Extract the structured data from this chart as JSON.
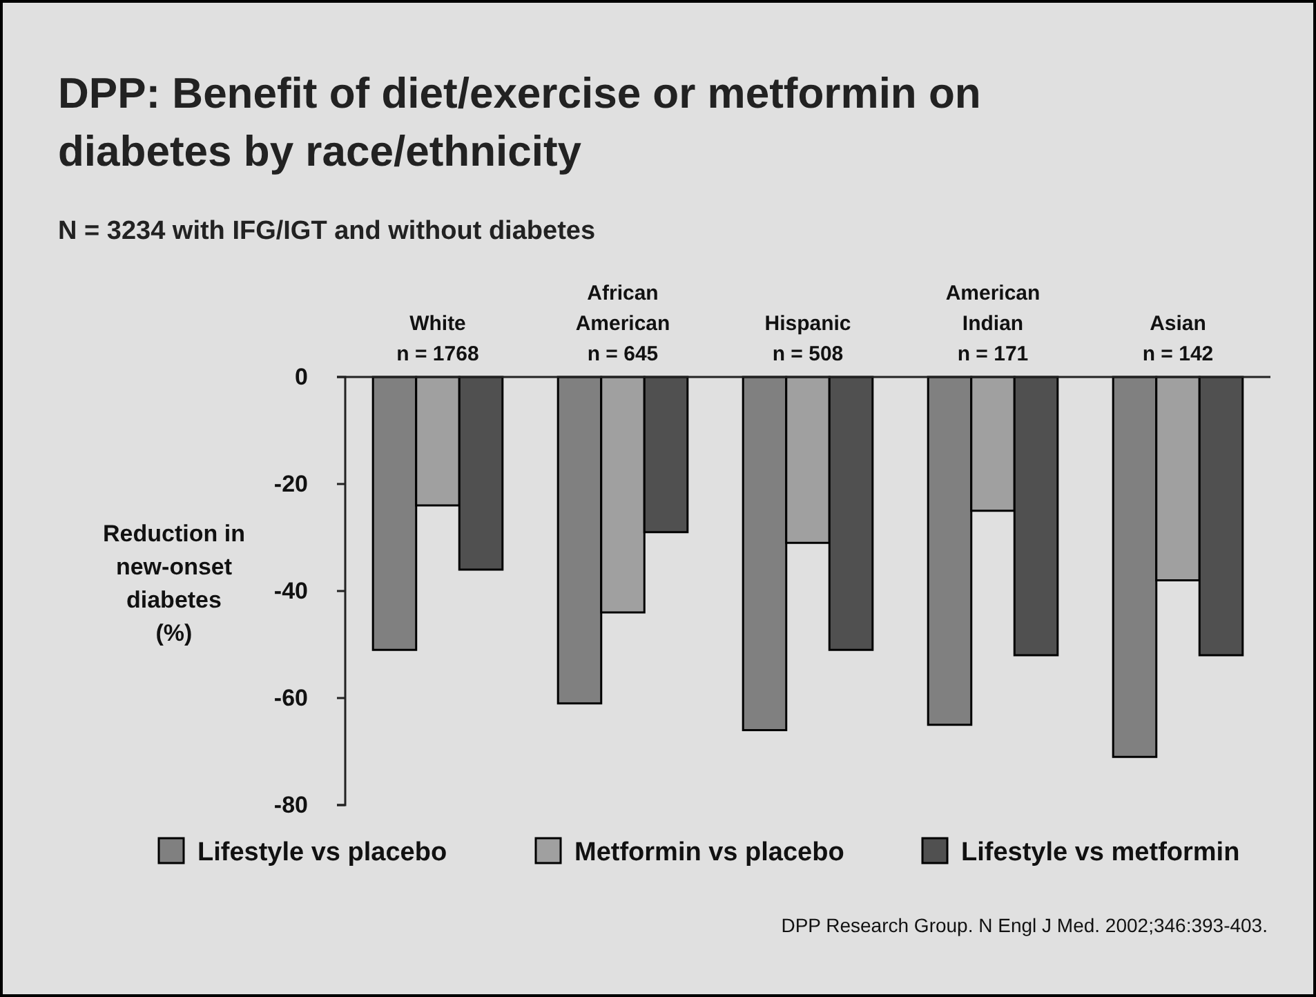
{
  "chart_data": {
    "type": "bar",
    "title": "DPP: Benefit of diet/exercise or metformin on diabetes by race/ethnicity",
    "subtitle": "N = 3234 with IFG/IGT and without diabetes",
    "ylabel": "Reduction in\nnew-onset\ndiabetes\n(%)",
    "categories": [
      "White\nn = 1768",
      "African\nAmerican\nn = 645",
      "Hispanic\nn = 508",
      "American\nIndian\nn = 171",
      "Asian\nn = 142"
    ],
    "series": [
      {
        "name": "Lifestyle vs placebo",
        "color": "#808080",
        "values": [
          -51,
          -61,
          -66,
          -65,
          -71
        ]
      },
      {
        "name": "Metformin vs placebo",
        "color": "#a0a0a0",
        "values": [
          -24,
          -44,
          -31,
          -25,
          -38
        ]
      },
      {
        "name": "Lifestyle vs metformin",
        "color": "#505050",
        "values": [
          -36,
          -29,
          -51,
          -52,
          -52
        ]
      }
    ],
    "ylim": [
      -80,
      0
    ],
    "yticks": [
      0,
      -20,
      -40,
      -60,
      -80
    ],
    "legend": "bottom",
    "grid": false,
    "annotations": [
      "DPP Research Group. N Engl J Med. 2002;346:393-403."
    ]
  }
}
